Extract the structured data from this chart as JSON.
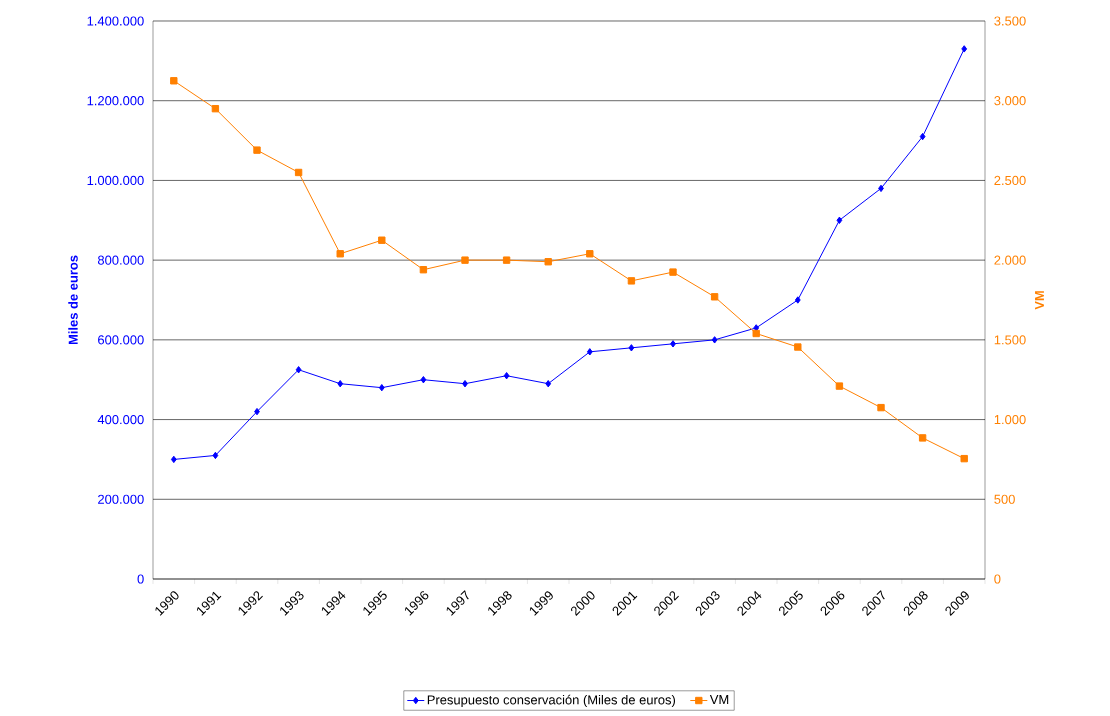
{
  "chart_data": {
    "type": "line",
    "ylabel": "Miles de euros",
    "y2label": "VM",
    "categories": [
      "1990",
      "1991",
      "1992",
      "1993",
      "1994",
      "1995",
      "1996",
      "1997",
      "1998",
      "1999",
      "2000",
      "2001",
      "2002",
      "2003",
      "2004",
      "2005",
      "2006",
      "2007",
      "2008",
      "2009"
    ],
    "series": [
      {
        "name": "Presupuesto conservación (Miles de euros)",
        "color": "#0000ff",
        "marker": "diamond",
        "values": [
          300000,
          310000,
          420000,
          525000,
          490000,
          480000,
          500000,
          490000,
          510000,
          490000,
          570000,
          580000,
          590000,
          600000,
          630000,
          700000,
          900000,
          980000,
          1110000,
          1330000
        ]
      },
      {
        "name": "VM",
        "color": "#ff8000",
        "marker": "square",
        "axis": "y2",
        "values": [
          3125,
          2950,
          2690,
          2550,
          2040,
          2125,
          1940,
          2000,
          2000,
          1990,
          2040,
          1870,
          1925,
          1770,
          1540,
          1455,
          1210,
          1075,
          885,
          755
        ]
      }
    ],
    "ylim": [
      0,
      1400000
    ],
    "yticks": [
      0,
      {
        "value": 200000,
        "label": "200.000"
      },
      {
        "value": 400000,
        "label": "400.000"
      },
      {
        "value": 600000,
        "label": "600.000"
      },
      {
        "value": 800000,
        "label": "800.000"
      },
      {
        "value": 1000000,
        "label": "1.000.000"
      },
      {
        "value": 1200000,
        "label": "1.200.000"
      },
      {
        "value": 1400000,
        "label": "1.400.000"
      }
    ],
    "y2lim": [
      0,
      3500
    ],
    "y2ticks": [
      0,
      500,
      {
        "value": 1000,
        "label": "1.000"
      },
      {
        "value": 1500,
        "label": "1.500"
      },
      {
        "value": 2000,
        "label": "2.000"
      },
      {
        "value": 2500,
        "label": "2.500"
      },
      {
        "value": 3000,
        "label": "3.000"
      },
      {
        "value": 3500,
        "label": "3.500"
      }
    ],
    "grid": "y",
    "legend": "bottom"
  }
}
